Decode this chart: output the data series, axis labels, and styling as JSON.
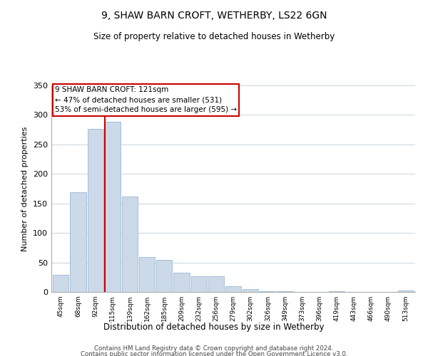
{
  "title": "9, SHAW BARN CROFT, WETHERBY, LS22 6GN",
  "subtitle": "Size of property relative to detached houses in Wetherby",
  "xlabel": "Distribution of detached houses by size in Wetherby",
  "ylabel": "Number of detached properties",
  "bar_labels": [
    "45sqm",
    "68sqm",
    "92sqm",
    "115sqm",
    "139sqm",
    "162sqm",
    "185sqm",
    "209sqm",
    "232sqm",
    "256sqm",
    "279sqm",
    "302sqm",
    "326sqm",
    "349sqm",
    "373sqm",
    "396sqm",
    "419sqm",
    "443sqm",
    "466sqm",
    "490sqm",
    "513sqm"
  ],
  "bar_values": [
    29,
    169,
    276,
    289,
    162,
    59,
    54,
    33,
    27,
    27,
    10,
    5,
    1,
    1,
    0,
    0,
    1,
    0,
    0,
    0,
    3
  ],
  "bar_color": "#ccd9e8",
  "bar_edge_color": "#99b8d4",
  "highlight_index": 3,
  "highlight_line_color": "#cc0000",
  "annotation_line1": "9 SHAW BARN CROFT: 121sqm",
  "annotation_line2": "← 47% of detached houses are smaller (531)",
  "annotation_line3": "53% of semi-detached houses are larger (595) →",
  "ylim": [
    0,
    350
  ],
  "yticks": [
    0,
    50,
    100,
    150,
    200,
    250,
    300,
    350
  ],
  "footer_line1": "Contains HM Land Registry data © Crown copyright and database right 2024.",
  "footer_line2": "Contains public sector information licensed under the Open Government Licence v3.0.",
  "background_color": "#ffffff",
  "grid_color": "#c8d4de"
}
